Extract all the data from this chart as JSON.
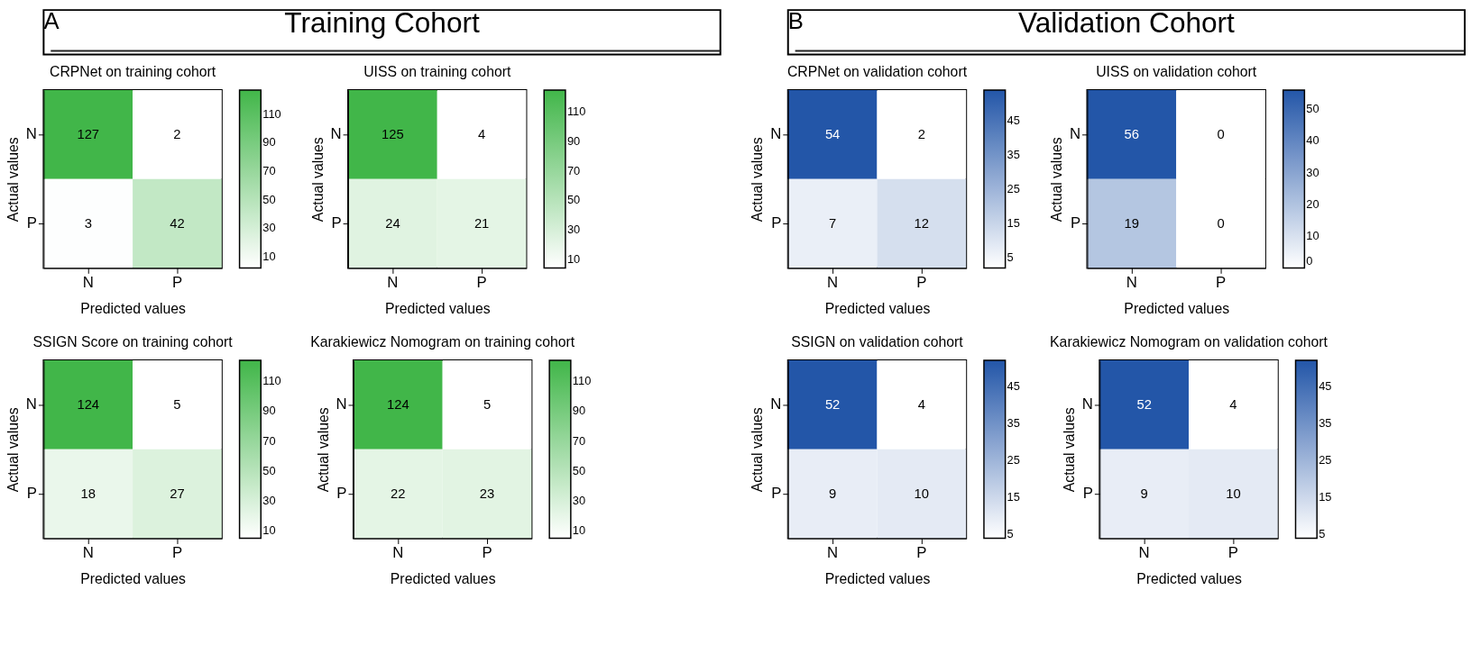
{
  "chart_data": [
    {
      "type": "heatmap",
      "title": "CRPNet on training cohort",
      "xlabel": "Predicted values",
      "ylabel": "Actual values",
      "annotations": [
        "A",
        "Training Cohort"
      ],
      "categories": [
        "N",
        "P"
      ],
      "y_categories": [
        "N",
        "P"
      ],
      "cells": [
        [
          127,
          2
        ],
        [
          3,
          42
        ]
      ],
      "data_labels": true,
      "colors": [
        "#ffffff",
        "#41b649"
      ],
      "clim": [
        2,
        127
      ],
      "cticks": [
        10,
        30,
        50,
        70,
        90,
        110
      ]
    },
    {
      "type": "heatmap",
      "title": "UISS on training cohort",
      "xlabel": "Predicted values",
      "ylabel": "Actual values",
      "categories": [
        "N",
        "P"
      ],
      "y_categories": [
        "N",
        "P"
      ],
      "cells": [
        [
          125,
          4
        ],
        [
          24,
          21
        ]
      ],
      "data_labels": true,
      "colors": [
        "#ffffff",
        "#41b649"
      ],
      "clim": [
        4,
        125
      ],
      "cticks": [
        10,
        30,
        50,
        70,
        90,
        110
      ]
    },
    {
      "type": "heatmap",
      "title": "SSIGN Score on training cohort",
      "xlabel": "Predicted values",
      "ylabel": "Actual values",
      "categories": [
        "N",
        "P"
      ],
      "y_categories": [
        "N",
        "P"
      ],
      "cells": [
        [
          124,
          5
        ],
        [
          18,
          27
        ]
      ],
      "data_labels": true,
      "colors": [
        "#ffffff",
        "#41b649"
      ],
      "clim": [
        5,
        124
      ],
      "cticks": [
        10,
        30,
        50,
        70,
        90,
        110
      ]
    },
    {
      "type": "heatmap",
      "title": "Karakiewicz Nomogram on training cohort",
      "xlabel": "Predicted values",
      "ylabel": "Actual values",
      "categories": [
        "N",
        "P"
      ],
      "y_categories": [
        "N",
        "P"
      ],
      "cells": [
        [
          124,
          5
        ],
        [
          22,
          23
        ]
      ],
      "data_labels": true,
      "colors": [
        "#ffffff",
        "#41b649"
      ],
      "clim": [
        5,
        124
      ],
      "cticks": [
        10,
        30,
        50,
        70,
        90,
        110
      ]
    },
    {
      "type": "heatmap",
      "title": "CRPNet on validation cohort",
      "xlabel": "Predicted values",
      "ylabel": "Actual values",
      "annotations": [
        "B",
        "Validation  Cohort"
      ],
      "categories": [
        "N",
        "P"
      ],
      "y_categories": [
        "N",
        "P"
      ],
      "cells": [
        [
          54,
          2
        ],
        [
          7,
          12
        ]
      ],
      "data_labels": true,
      "colors": [
        "#ffffff",
        "#2356a8"
      ],
      "clim": [
        2,
        54
      ],
      "cticks": [
        5,
        15,
        25,
        35,
        45
      ]
    },
    {
      "type": "heatmap",
      "title": "UISS on validation cohort",
      "xlabel": "Predicted values",
      "ylabel": "Actual values",
      "categories": [
        "N",
        "P"
      ],
      "y_categories": [
        "N",
        "P"
      ],
      "cells": [
        [
          56,
          0
        ],
        [
          19,
          0
        ]
      ],
      "data_labels": true,
      "colors": [
        "#ffffff",
        "#2356a8"
      ],
      "clim": [
        0,
        56
      ],
      "cticks": [
        0,
        10,
        20,
        30,
        40,
        50
      ]
    },
    {
      "type": "heatmap",
      "title": "SSIGN on validation cohort",
      "xlabel": "Predicted values",
      "ylabel": "Actual values",
      "categories": [
        "N",
        "P"
      ],
      "y_categories": [
        "N",
        "P"
      ],
      "cells": [
        [
          52,
          4
        ],
        [
          9,
          10
        ]
      ],
      "data_labels": true,
      "colors": [
        "#ffffff",
        "#2356a8"
      ],
      "clim": [
        4,
        52
      ],
      "cticks": [
        5,
        15,
        25,
        35,
        45
      ]
    },
    {
      "type": "heatmap",
      "title": "Karakiewicz Nomogram on validation cohort",
      "xlabel": "Predicted values",
      "ylabel": "Actual values",
      "categories": [
        "N",
        "P"
      ],
      "y_categories": [
        "N",
        "P"
      ],
      "cells": [
        [
          52,
          4
        ],
        [
          9,
          10
        ]
      ],
      "data_labels": true,
      "colors": [
        "#ffffff",
        "#2356a8"
      ],
      "clim": [
        4,
        52
      ],
      "cticks": [
        5,
        15,
        25,
        35,
        45
      ]
    }
  ]
}
